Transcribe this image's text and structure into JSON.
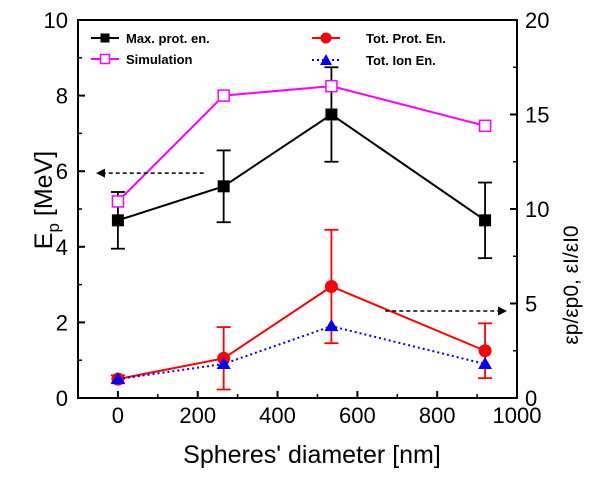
{
  "chart_data": {
    "type": "line",
    "xlabel": "Spheres' diameter [nm]",
    "x_axis": {
      "range": [
        -100,
        1000
      ],
      "ticks": [
        0,
        200,
        400,
        600,
        800,
        1000
      ]
    },
    "y_left": {
      "label_main": "E",
      "label_sub": "p",
      "label_unit": " [MeV]",
      "range": [
        0,
        10
      ],
      "ticks": [
        0,
        2,
        4,
        6,
        8,
        10
      ]
    },
    "y_right": {
      "label_text": "εp/εp0, εI/εI0",
      "range": [
        0,
        20
      ],
      "ticks": [
        0,
        5,
        10,
        15,
        20
      ]
    },
    "series": [
      {
        "name": "Max. prot. en.",
        "axis": "left",
        "color": "#000000",
        "marker": "square-filled",
        "dash": "solid",
        "x": [
          0,
          265,
          535,
          920
        ],
        "y": [
          4.7,
          5.6,
          7.5,
          4.7
        ],
        "err": [
          0.75,
          0.95,
          1.25,
          1.0
        ]
      },
      {
        "name": "Simulation",
        "axis": "left",
        "color": "#ff00ff",
        "marker": "square-open",
        "dash": "solid",
        "x": [
          0,
          265,
          535,
          920
        ],
        "y": [
          5.2,
          8.0,
          8.25,
          7.2
        ]
      },
      {
        "name": "Tot. Prot. En.",
        "axis": "right",
        "color": "#ff0000",
        "marker": "circle-filled",
        "dash": "solid",
        "x": [
          0,
          265,
          535,
          920
        ],
        "y": [
          1.0,
          2.1,
          5.9,
          2.5
        ],
        "err": [
          0.2,
          1.65,
          3.0,
          1.45
        ]
      },
      {
        "name": "Tot. Ion En.",
        "axis": "right",
        "color": "#0000ff",
        "marker": "triangle-filled",
        "dash": "dotted",
        "x": [
          0,
          265,
          535,
          920
        ],
        "y": [
          1.0,
          1.8,
          3.8,
          1.8
        ]
      }
    ],
    "annotations": [
      {
        "type": "arrow",
        "direction": "left",
        "from": [
          215,
          5.95
        ],
        "to": [
          -55,
          5.95
        ],
        "axis": "left"
      },
      {
        "type": "arrow",
        "direction": "right",
        "from": [
          670,
          4.6
        ],
        "to": [
          975,
          4.6
        ],
        "axis": "right"
      }
    ],
    "legend": [
      {
        "position": "top-left",
        "entries": [
          "Max. prot. en.",
          "Simulation"
        ]
      },
      {
        "position": "top-right",
        "entries": [
          "Tot. Prot. En.",
          "Tot. Ion En."
        ]
      }
    ],
    "grid": false
  }
}
